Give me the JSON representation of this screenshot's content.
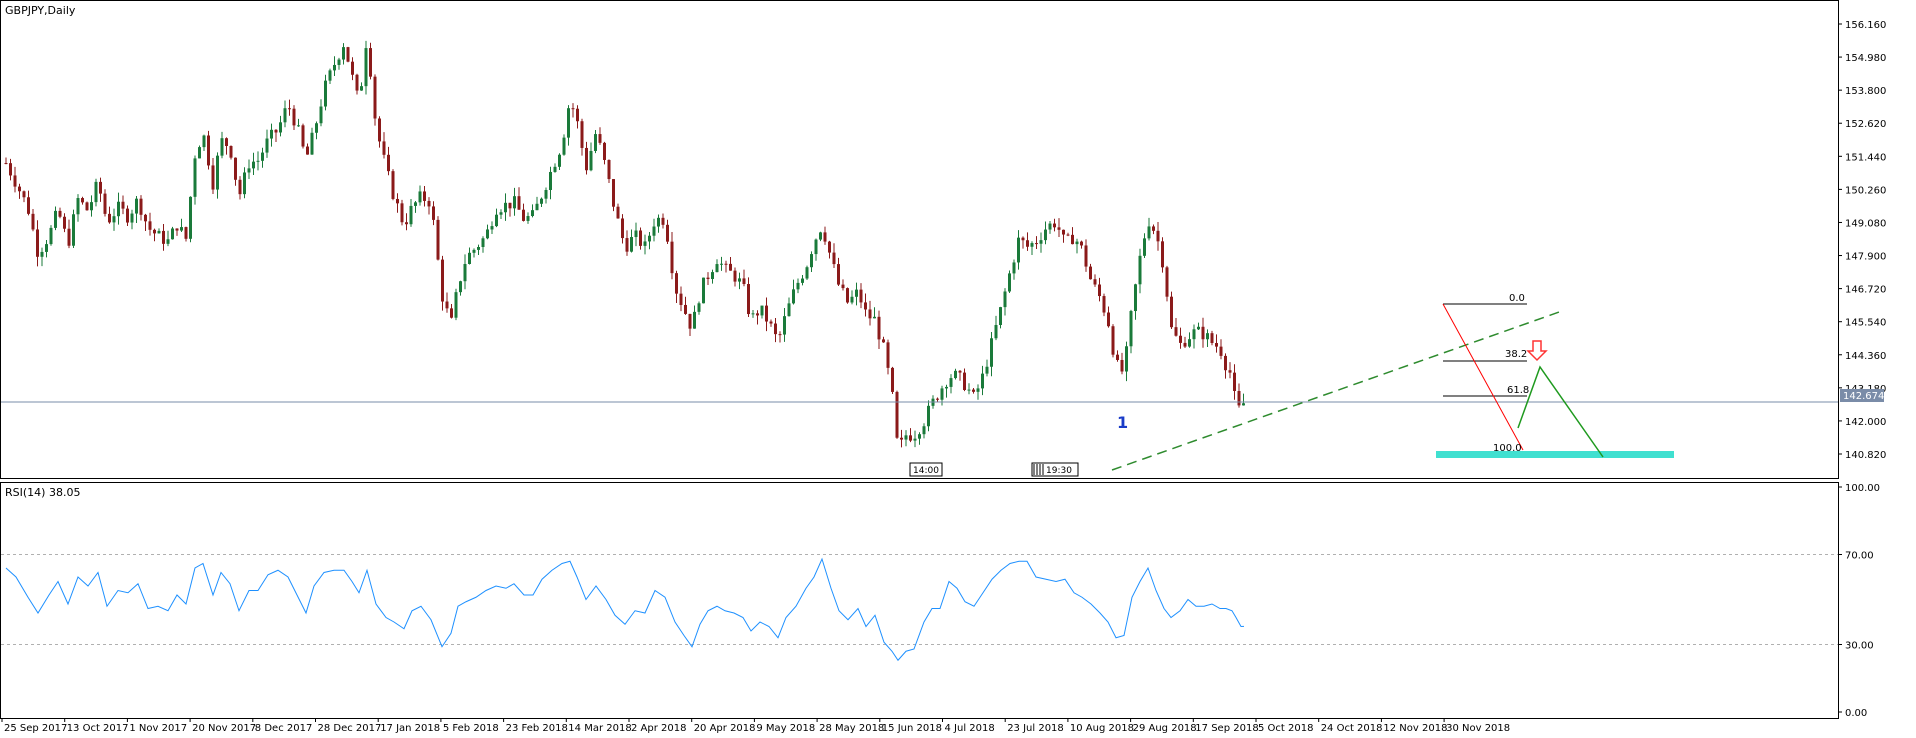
{
  "header": {
    "symbol_label": "GBPJPY,Daily"
  },
  "rsi_label": "RSI(14) 38.05",
  "colors": {
    "background": "#ffffff",
    "frame": "#000000",
    "bull_candle": "#1a7a3a",
    "bear_candle": "#8b1a1a",
    "rsi_line": "#1e90ff",
    "trendline": "#2e8b2e",
    "price_line": "#7a8ca8",
    "target_zone": "#40e0d0",
    "projection_line": "#1f9a1f",
    "arrow": "#ff3333",
    "fib_line": "#000000",
    "down_line": "#ff0000"
  },
  "chart_data": [
    {
      "type": "candlestick",
      "title": "GBPJPY,Daily",
      "ylim": [
        140.2,
        156.7
      ],
      "y_ticks": [
        "156.160",
        "154.980",
        "153.800",
        "152.620",
        "151.440",
        "150.260",
        "149.080",
        "147.900",
        "146.720",
        "145.540",
        "144.360",
        "143.180",
        "142.000",
        "140.820"
      ],
      "current_price": "142.674",
      "x_labels": [
        "25 Sep 2017",
        "13 Oct 2017",
        "1 Nov 2017",
        "20 Nov 2017",
        "8 Dec 2017",
        "28 Dec 2017",
        "17 Jan 2018",
        "5 Feb 2018",
        "23 Feb 2018",
        "14 Mar 2018",
        "2 Apr 2018",
        "20 Apr 2018",
        "9 May 2018",
        "28 May 2018",
        "15 Jun 2018",
        "4 Jul 2018",
        "23 Jul 2018",
        "10 Aug 2018",
        "29 Aug 2018",
        "17 Sep 2018",
        "5 Oct 2018",
        "24 Oct 2018",
        "12 Nov 2018",
        "30 Nov 2018"
      ],
      "close_path": [
        [
          0,
          151.2
        ],
        [
          10,
          150.5
        ],
        [
          22,
          149.6
        ],
        [
          32,
          148.0
        ],
        [
          43,
          148.6
        ],
        [
          52,
          149.5
        ],
        [
          62,
          148.3
        ],
        [
          72,
          149.9
        ],
        [
          82,
          149.5
        ],
        [
          92,
          150.5
        ],
        [
          101,
          149.1
        ],
        [
          112,
          149.6
        ],
        [
          122,
          149.3
        ],
        [
          132,
          149.9
        ],
        [
          142,
          148.9
        ],
        [
          152,
          148.6
        ],
        [
          162,
          148.4
        ],
        [
          171,
          149.0
        ],
        [
          180,
          148.5
        ],
        [
          189,
          151.5
        ],
        [
          197,
          152.3
        ],
        [
          207,
          150.5
        ],
        [
          215,
          152.0
        ],
        [
          224,
          151.8
        ],
        [
          233,
          150.0
        ],
        [
          243,
          151.2
        ],
        [
          252,
          151.3
        ],
        [
          262,
          152.0
        ],
        [
          272,
          152.4
        ],
        [
          282,
          153.3
        ],
        [
          291,
          152.5
        ],
        [
          300,
          151.3
        ],
        [
          308,
          152.3
        ],
        [
          318,
          153.8
        ],
        [
          328,
          154.7
        ],
        [
          338,
          155.5
        ],
        [
          346,
          154.3
        ],
        [
          353,
          153.3
        ],
        [
          361,
          155.8
        ],
        [
          370,
          152.5
        ],
        [
          380,
          151.0
        ],
        [
          388,
          150.0
        ],
        [
          398,
          149.0
        ],
        [
          406,
          149.6
        ],
        [
          415,
          150.0
        ],
        [
          425,
          149.8
        ],
        [
          436,
          146.5
        ],
        [
          445,
          145.4
        ],
        [
          452,
          146.8
        ],
        [
          460,
          147.8
        ],
        [
          470,
          148.2
        ],
        [
          480,
          148.6
        ],
        [
          490,
          149.6
        ],
        [
          500,
          149.7
        ],
        [
          508,
          149.8
        ],
        [
          518,
          149.2
        ],
        [
          527,
          149.3
        ],
        [
          536,
          150.1
        ],
        [
          546,
          151.0
        ],
        [
          556,
          151.9
        ],
        [
          564,
          153.5
        ],
        [
          571,
          152.7
        ],
        [
          580,
          151.0
        ],
        [
          590,
          152.3
        ],
        [
          600,
          151.0
        ],
        [
          609,
          149.5
        ],
        [
          619,
          148.2
        ],
        [
          629,
          148.6
        ],
        [
          639,
          148.2
        ],
        [
          649,
          149.2
        ],
        [
          659,
          149.2
        ],
        [
          669,
          146.8
        ],
        [
          678,
          146.0
        ],
        [
          686,
          145.3
        ],
        [
          694,
          146.6
        ],
        [
          702,
          147.2
        ],
        [
          711,
          147.8
        ],
        [
          719,
          147.4
        ],
        [
          728,
          147.2
        ],
        [
          737,
          146.8
        ],
        [
          745,
          145.6
        ],
        [
          754,
          146.0
        ],
        [
          763,
          145.5
        ],
        [
          772,
          144.8
        ],
        [
          780,
          145.8
        ],
        [
          790,
          146.8
        ],
        [
          800,
          147.5
        ],
        [
          808,
          148.4
        ],
        [
          816,
          149.0
        ],
        [
          825,
          147.8
        ],
        [
          833,
          146.8
        ],
        [
          842,
          146.2
        ],
        [
          852,
          146.6
        ],
        [
          860,
          145.8
        ],
        [
          869,
          145.6
        ],
        [
          878,
          144.5
        ],
        [
          886,
          143.0
        ],
        [
          892,
          140.9
        ],
        [
          900,
          141.5
        ],
        [
          908,
          141.5
        ],
        [
          918,
          142.0
        ],
        [
          926,
          142.6
        ],
        [
          934,
          143.1
        ],
        [
          943,
          143.6
        ],
        [
          951,
          143.6
        ],
        [
          959,
          143.3
        ],
        [
          968,
          142.8
        ],
        [
          977,
          143.6
        ],
        [
          986,
          144.8
        ],
        [
          995,
          146.0
        ],
        [
          1004,
          147.3
        ],
        [
          1013,
          148.5
        ],
        [
          1021,
          148.2
        ],
        [
          1030,
          148.4
        ],
        [
          1040,
          148.9
        ],
        [
          1050,
          149.1
        ],
        [
          1059,
          148.3
        ],
        [
          1068,
          148.6
        ],
        [
          1076,
          148.1
        ],
        [
          1085,
          147.0
        ],
        [
          1094,
          146.4
        ],
        [
          1102,
          145.6
        ],
        [
          1110,
          144.0
        ],
        [
          1118,
          143.7
        ],
        [
          1126,
          146.0
        ],
        [
          1134,
          147.8
        ],
        [
          1142,
          149.2
        ],
        [
          1150,
          148.7
        ],
        [
          1158,
          147.5
        ],
        [
          1165,
          145.3
        ],
        [
          1174,
          144.7
        ],
        [
          1182,
          145.0
        ],
        [
          1190,
          145.2
        ],
        [
          1198,
          145.1
        ],
        [
          1206,
          144.8
        ],
        [
          1214,
          144.6
        ],
        [
          1220,
          144.0
        ],
        [
          1226,
          143.6
        ],
        [
          1230,
          142.4
        ],
        [
          1235,
          142.4
        ],
        [
          1238,
          142.67
        ]
      ]
    },
    {
      "type": "line",
      "title": "RSI(14) 38.05",
      "ylim": [
        0,
        100
      ],
      "y_ticks": [
        "100.00",
        "70.00",
        "30.00",
        "0.00"
      ],
      "levels": [
        70,
        30
      ],
      "x": [
        0,
        10,
        22,
        32,
        43,
        52,
        62,
        72,
        82,
        92,
        101,
        112,
        122,
        132,
        142,
        152,
        162,
        171,
        180,
        189,
        197,
        207,
        215,
        224,
        233,
        243,
        252,
        262,
        272,
        282,
        291,
        300,
        308,
        318,
        328,
        338,
        346,
        353,
        361,
        370,
        380,
        388,
        398,
        406,
        415,
        425,
        436,
        445,
        452,
        460,
        470,
        480,
        490,
        500,
        508,
        518,
        527,
        536,
        546,
        556,
        564,
        571,
        580,
        590,
        600,
        609,
        619,
        629,
        639,
        649,
        659,
        669,
        678,
        686,
        694,
        702,
        711,
        719,
        728,
        737,
        745,
        754,
        763,
        772,
        780,
        790,
        800,
        808,
        816,
        825,
        833,
        842,
        852,
        860,
        869,
        878,
        886,
        892,
        900,
        908,
        918,
        926,
        934,
        943,
        951,
        959,
        968,
        977,
        986,
        995,
        1004,
        1013,
        1021,
        1030,
        1040,
        1050,
        1059,
        1068,
        1076,
        1085,
        1094,
        1102,
        1110,
        1118,
        1126,
        1134,
        1142,
        1150,
        1158,
        1165,
        1174,
        1182,
        1190,
        1198,
        1206,
        1214,
        1220,
        1226,
        1230,
        1235,
        1238
      ],
      "values": [
        64,
        60,
        51,
        44,
        52,
        58,
        48,
        60,
        56,
        62,
        47,
        54,
        53,
        57,
        46,
        47,
        45,
        52,
        48,
        64,
        66,
        52,
        62,
        57,
        45,
        54,
        54,
        61,
        63,
        60,
        52,
        44,
        56,
        62,
        63,
        63,
        58,
        53,
        63,
        48,
        42,
        40,
        37,
        45,
        47,
        41,
        29,
        35,
        47,
        49,
        51,
        54,
        56,
        55,
        57,
        52,
        52,
        59,
        63,
        66,
        67,
        60,
        50,
        56,
        50,
        43,
        39,
        45,
        44,
        54,
        51,
        40,
        34,
        29,
        39,
        45,
        47,
        45,
        44,
        42,
        36,
        40,
        38,
        33,
        42,
        47,
        55,
        60,
        68,
        55,
        45,
        41,
        46,
        38,
        43,
        31,
        27,
        23,
        27,
        28,
        40,
        46,
        46,
        58,
        55,
        49,
        47,
        53,
        59,
        63,
        66,
        67,
        67,
        60,
        59,
        58,
        59,
        53,
        51,
        48,
        44,
        40,
        33,
        34,
        51,
        58,
        64,
        54,
        46,
        42,
        45,
        50,
        47,
        47,
        48,
        46,
        46,
        45,
        42,
        38,
        38.05
      ]
    }
  ],
  "annotations": {
    "wave_label": "1",
    "fib_0": "0.0",
    "fib_382": "38.2",
    "fib_618": "61.8",
    "fib_100": "100.0",
    "time_marker_1": "14:00",
    "time_marker_2": "19:30"
  }
}
